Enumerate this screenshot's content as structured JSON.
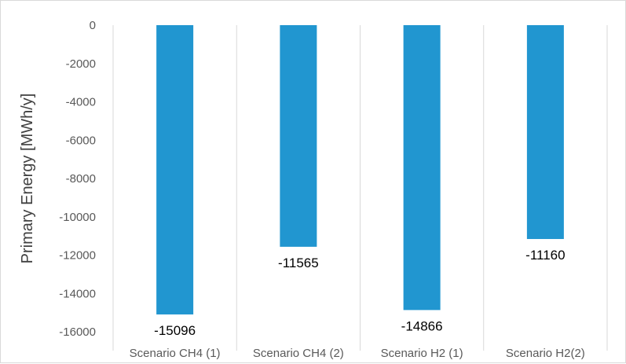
{
  "chart_data": {
    "type": "bar",
    "title": "",
    "xlabel": "",
    "ylabel": "Primary Energy [MWh/y]",
    "categories": [
      "Scenario CH4 (1)",
      "Scenario CH4 (2)",
      "Scenario H2 (1)",
      "Scenario H2(2)"
    ],
    "values": [
      -15096,
      -11565,
      -14866,
      -11160
    ],
    "data_labels": [
      "-15096",
      "-11565",
      "-14866",
      "-11160"
    ],
    "yticks": [
      0,
      -2000,
      -4000,
      -6000,
      -8000,
      -10000,
      -12000,
      -14000,
      -16000
    ],
    "ylim": [
      -16000,
      0
    ],
    "grid": "vertical separators",
    "legend": "none",
    "colors": {
      "bar": "#2196d0",
      "gridline": "#d9d9d9"
    }
  }
}
